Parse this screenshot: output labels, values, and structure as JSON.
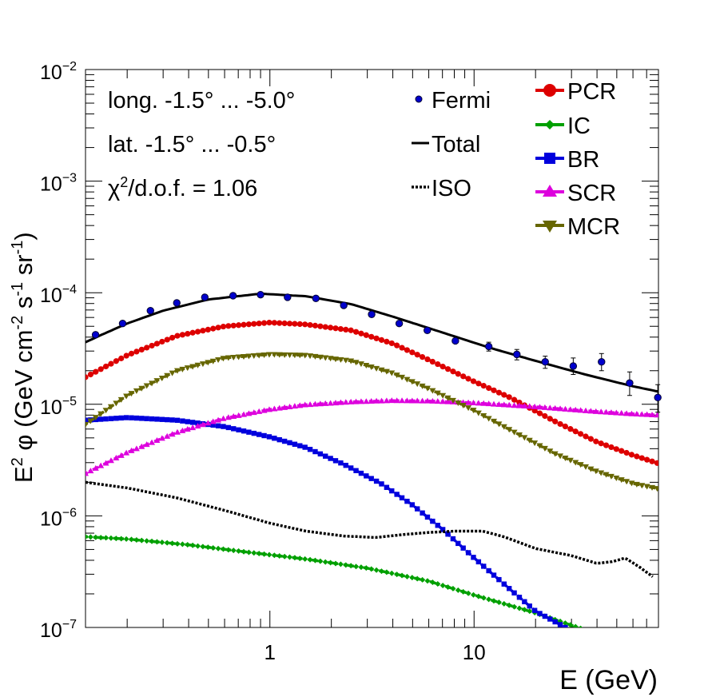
{
  "chart_data": {
    "type": "scatter",
    "title": "",
    "xlabel": "E (GeV)",
    "ylabel_parts": {
      "e": "E",
      "exp2": "2",
      "phi": " φ (GeV cm",
      "m2": "-2",
      "s": " s",
      "m1a": "-1",
      "sr": " sr",
      "m1b": "-1",
      "close": ")"
    },
    "xscale": "log",
    "yscale": "log",
    "xlim": [
      0.125,
      80
    ],
    "ylim": [
      1e-07,
      0.01
    ],
    "x_tick_labels": [
      {
        "value": 1,
        "label": "1"
      },
      {
        "value": 10,
        "label": "10"
      }
    ],
    "y_tick_labels": [
      {
        "value": 1e-07,
        "base": "10",
        "exp": "−7"
      },
      {
        "value": 1e-06,
        "base": "10",
        "exp": "−6"
      },
      {
        "value": 1e-05,
        "base": "10",
        "exp": "−5"
      },
      {
        "value": 0.0001,
        "base": "10",
        "exp": "−4"
      },
      {
        "value": 0.001,
        "base": "10",
        "exp": "−3"
      },
      {
        "value": 0.01,
        "base": "10",
        "exp": "−2"
      }
    ],
    "annotations": {
      "longitude": "long. -1.5° ... -5.0°",
      "latitude": "lat. -1.5° ... -0.5°",
      "chi_prefix": "χ",
      "chi_exp": "2",
      "chi_suffix": "/d.o.f. = 1.06"
    },
    "legend_left": [
      {
        "label": "Fermi"
      },
      {
        "label": "Total"
      },
      {
        "label": "ISO"
      }
    ],
    "legend_right": [
      {
        "label": "PCR",
        "color": "#dd0000",
        "marker": "circle"
      },
      {
        "label": "IC",
        "color": "#00a000",
        "marker": "diamond"
      },
      {
        "label": "BR",
        "color": "#0000dd",
        "marker": "square"
      },
      {
        "label": "SCR",
        "color": "#dd00dd",
        "marker": "triangle-up"
      },
      {
        "label": "MCR",
        "color": "#666600",
        "marker": "triangle-down"
      }
    ],
    "fermi": {
      "x": [
        0.14,
        0.19,
        0.26,
        0.35,
        0.48,
        0.66,
        0.9,
        1.22,
        1.68,
        2.3,
        3.15,
        4.3,
        5.9,
        8.1,
        11.8,
        16.2,
        22.3,
        30.6,
        42.1,
        57.8,
        79.4
      ],
      "y": [
        4.2e-05,
        5.3e-05,
        6.9e-05,
        8.1e-05,
        9.1e-05,
        9.4e-05,
        9.6e-05,
        9.1e-05,
        8.9e-05,
        7.7e-05,
        6.4e-05,
        5.3e-05,
        4.6e-05,
        3.7e-05,
        3.3e-05,
        2.8e-05,
        2.4e-05,
        2.2e-05,
        2.4e-05,
        1.55e-05,
        1.15e-05
      ],
      "err_low": [
        0,
        0,
        0,
        0,
        0,
        0,
        0,
        0,
        0,
        0,
        0,
        0,
        0,
        0,
        3e-06,
        3e-06,
        3e-06,
        3.5e-06,
        4e-06,
        3.5e-06,
        3e-06
      ],
      "err_high": [
        0,
        0,
        0,
        0,
        0,
        0,
        0,
        0,
        0,
        0,
        0,
        0,
        0,
        0,
        3e-06,
        3e-06,
        3e-06,
        4e-06,
        4.5e-06,
        4e-06,
        3.5e-06
      ]
    },
    "total": {
      "x": [
        0.125,
        0.15,
        0.2,
        0.3,
        0.5,
        0.9,
        1.5,
        2.5,
        4,
        7,
        12,
        20,
        35,
        60,
        80
      ],
      "y": [
        3.6e-05,
        4.2e-05,
        5.3e-05,
        6.9e-05,
        8.7e-05,
        9.8e-05,
        9.3e-05,
        7.9e-05,
        6.1e-05,
        4.4e-05,
        3.2e-05,
        2.45e-05,
        1.85e-05,
        1.45e-05,
        1.3e-05
      ]
    },
    "iso": {
      "x": [
        0.125,
        0.2,
        0.35,
        0.6,
        1.0,
        1.5,
        2.3,
        3.3,
        4.5,
        6,
        8,
        11,
        14,
        20,
        30,
        40,
        48,
        55,
        65,
        75
      ],
      "y": [
        2e-06,
        1.78e-06,
        1.45e-06,
        1.12e-06,
        8.6e-07,
        7.3e-07,
        6.6e-07,
        6.4e-07,
        6.8e-07,
        7.1e-07,
        7.3e-07,
        7.3e-07,
        6.5e-07,
        5.1e-07,
        4.4e-07,
        3.75e-07,
        3.9e-07,
        4.2e-07,
        3.45e-07,
        2.85e-07
      ]
    },
    "series": [
      {
        "name": "PCR",
        "x": [
          0.125,
          0.2,
          0.35,
          0.6,
          1.0,
          1.5,
          2.5,
          4,
          6,
          10,
          15,
          25,
          40,
          60,
          80
        ],
        "y": [
          1.75e-05,
          2.75e-05,
          4.1e-05,
          5e-05,
          5.4e-05,
          5.2e-05,
          4.6e-05,
          3.5e-05,
          2.5e-05,
          1.6e-05,
          1.15e-05,
          7e-06,
          4.6e-06,
          3.5e-06,
          2.95e-06
        ]
      },
      {
        "name": "IC",
        "x": [
          0.125,
          0.2,
          0.4,
          0.8,
          1.5,
          3,
          6,
          10,
          20,
          35
        ],
        "y": [
          6.5e-07,
          6.2e-07,
          5.5e-07,
          4.7e-07,
          4.1e-07,
          3.4e-07,
          2.6e-07,
          1.95e-07,
          1.35e-07,
          9.5e-08
        ]
      },
      {
        "name": "BR",
        "x": [
          0.125,
          0.2,
          0.35,
          0.6,
          1.0,
          1.5,
          2.3,
          3.5,
          5,
          7,
          10,
          15,
          20,
          28
        ],
        "y": [
          7.2e-06,
          7.6e-06,
          7.2e-06,
          6.3e-06,
          5.1e-06,
          4.1e-06,
          2.9e-06,
          1.95e-06,
          1.25e-06,
          7.6e-07,
          4.2e-07,
          2.2e-07,
          1.4e-07,
          1e-07
        ]
      },
      {
        "name": "SCR",
        "x": [
          0.125,
          0.2,
          0.35,
          0.6,
          1.0,
          1.5,
          2.5,
          4,
          6,
          10,
          20,
          40,
          60,
          80
        ],
        "y": [
          2.4e-06,
          3.7e-06,
          5.6e-06,
          7.5e-06,
          9e-06,
          9.9e-06,
          1.05e-05,
          1.08e-05,
          1.07e-05,
          1.03e-05,
          9.5e-06,
          8.6e-06,
          8.2e-06,
          8e-06
        ]
      },
      {
        "name": "MCR",
        "x": [
          0.125,
          0.2,
          0.35,
          0.6,
          1.0,
          1.5,
          2.5,
          4,
          6,
          10,
          15,
          25,
          40,
          60,
          80
        ],
        "y": [
          6.6e-06,
          1.2e-05,
          2e-05,
          2.6e-05,
          2.8e-05,
          2.75e-05,
          2.45e-05,
          1.9e-05,
          1.38e-05,
          8.8e-06,
          5.9e-06,
          3.6e-06,
          2.5e-06,
          1.95e-06,
          1.75e-06
        ]
      }
    ]
  }
}
